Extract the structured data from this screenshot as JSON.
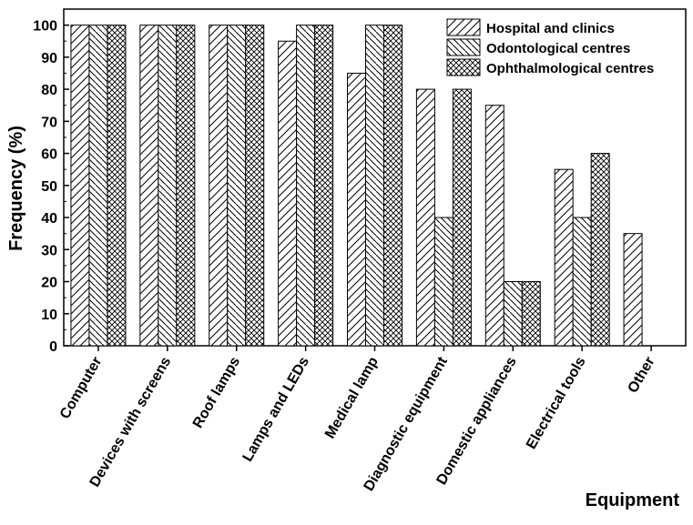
{
  "chart_data": {
    "type": "bar",
    "title": "",
    "xlabel": "Equipment",
    "ylabel": "Frequency (%)",
    "ylim": [
      0,
      105
    ],
    "yticks": [
      0,
      10,
      20,
      30,
      40,
      50,
      60,
      70,
      80,
      90,
      100
    ],
    "grid": false,
    "legend_position": "top-right",
    "categories": [
      "Computer",
      "Devices with screens",
      "Roof lamps",
      "Lamps and LEDs",
      "Medical lamp",
      "Diagnostic equipment",
      "Domestic appliances",
      "Electrical tools",
      "Other"
    ],
    "series": [
      {
        "name": "Hospital and clinics",
        "pattern": "diagonal-up",
        "values": [
          100,
          100,
          100,
          95,
          85,
          80,
          75,
          55,
          35
        ]
      },
      {
        "name": "Odontological centres",
        "pattern": "diagonal-down",
        "values": [
          100,
          100,
          100,
          100,
          100,
          40,
          20,
          40,
          0
        ]
      },
      {
        "name": "Ophthalmological centres",
        "pattern": "crosshatch",
        "values": [
          100,
          100,
          100,
          100,
          100,
          80,
          20,
          60,
          0
        ]
      }
    ],
    "colors": {
      "stroke": "#000000",
      "fill": "#ffffff"
    }
  }
}
